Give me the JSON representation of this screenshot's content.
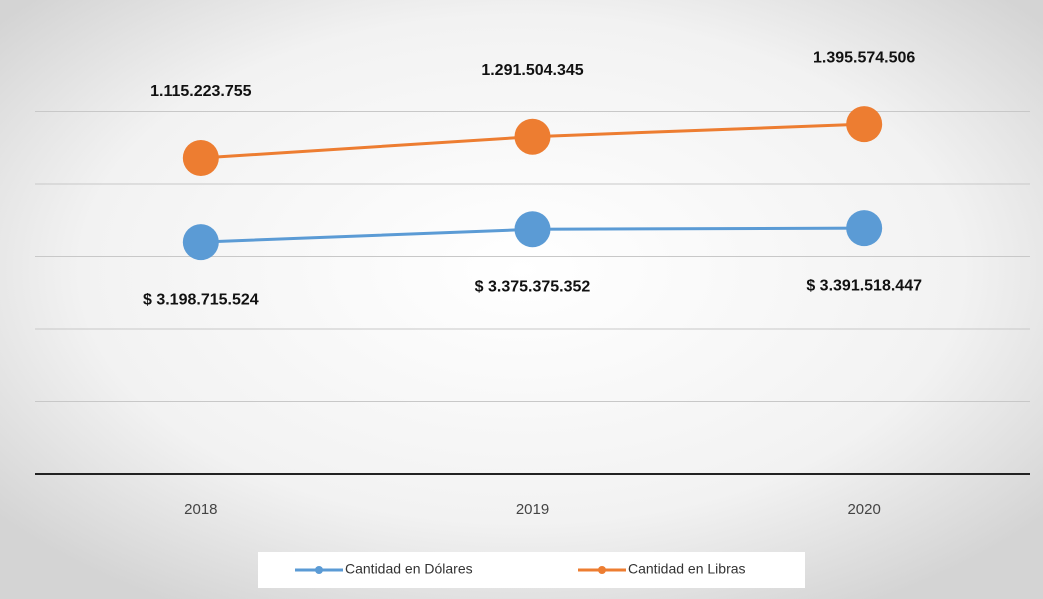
{
  "chart_data": {
    "type": "line",
    "categories": [
      "2018",
      "2019",
      "2020"
    ],
    "series": [
      {
        "name": "Cantidad en Dólares",
        "color": "#5b9bd5",
        "values": [
          3198715524,
          3375375352,
          3391518447
        ],
        "value_labels": [
          "$ 3.198.715.524",
          "$ 3.375.375.352",
          "$ 3.391.518.447"
        ]
      },
      {
        "name": "Cantidad en Libras",
        "color": "#ed7d31",
        "axis": "y2",
        "values": [
          1115223755,
          1291504345,
          1395574506
        ],
        "value_labels": [
          "1.115.223.755",
          "1.291.504.345",
          "1.395.574.506"
        ]
      }
    ],
    "ylim": [
      0,
      6000000000
    ],
    "yticks": [
      0,
      1000000000,
      2000000000,
      3000000000,
      4000000000,
      5000000000
    ],
    "y2lim": [
      -1500000000,
      2100000000
    ],
    "grid": true,
    "legend": "bottom"
  }
}
